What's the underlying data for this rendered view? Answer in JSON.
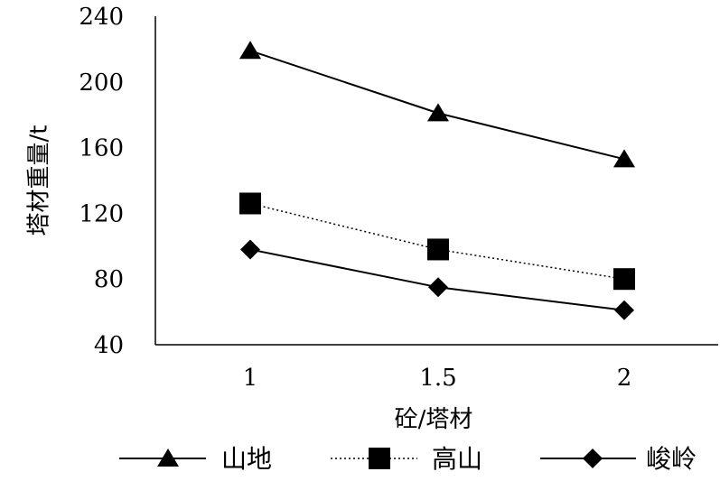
{
  "chart_data": {
    "type": "line",
    "x": [
      "1",
      "1.5",
      "2"
    ],
    "xlabel": "砼/塔材",
    "ylabel": "塔材重量/t",
    "ylim": [
      40,
      240
    ],
    "yticks": [
      "40",
      "80",
      "120",
      "160",
      "200",
      "240"
    ],
    "grid": false,
    "legend_position": "bottom",
    "series": [
      {
        "name": "山地",
        "values": [
          219,
          181,
          153
        ],
        "marker": "triangle",
        "line": "solid"
      },
      {
        "name": "高山",
        "values": [
          126,
          98,
          80
        ],
        "marker": "square",
        "line": "dotted"
      },
      {
        "name": "峻岭",
        "values": [
          98,
          75,
          61
        ],
        "marker": "diamond",
        "line": "solid"
      }
    ]
  }
}
